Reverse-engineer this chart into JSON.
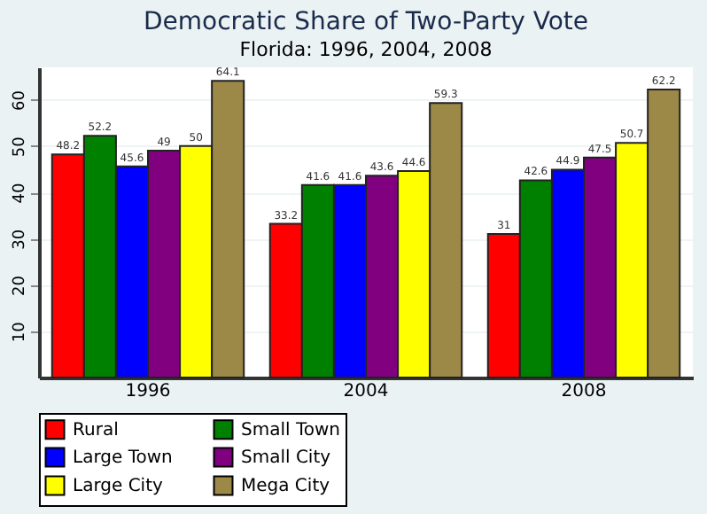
{
  "chart_data": {
    "type": "bar",
    "title": "Democratic Share of Two-Party Vote",
    "subtitle": "Florida: 1996, 2004, 2008",
    "categories": [
      "1996",
      "2004",
      "2008"
    ],
    "series": [
      {
        "name": "Rural",
        "color": "#ff0000",
        "values": [
          48.2,
          33.2,
          31
        ]
      },
      {
        "name": "Small Town",
        "color": "#008000",
        "values": [
          52.2,
          41.6,
          42.6
        ]
      },
      {
        "name": "Large Town",
        "color": "#0000ff",
        "values": [
          45.6,
          41.6,
          44.9
        ]
      },
      {
        "name": "Small City",
        "color": "#800080",
        "values": [
          49,
          43.6,
          47.5
        ]
      },
      {
        "name": "Large City",
        "color": "#ffff00",
        "values": [
          50,
          44.6,
          50.7
        ]
      },
      {
        "name": "Mega City",
        "color": "#9c8847",
        "values": [
          64.1,
          59.3,
          62.2
        ]
      }
    ],
    "ylim": [
      0,
      67
    ],
    "yticks": [
      10,
      20,
      30,
      40,
      50,
      60
    ],
    "grid": "y",
    "legend": "bottom",
    "data_labels": true
  }
}
